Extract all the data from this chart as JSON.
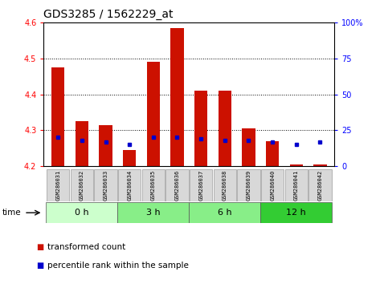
{
  "title": "GDS3285 / 1562229_at",
  "samples": [
    "GSM286031",
    "GSM286032",
    "GSM286033",
    "GSM286034",
    "GSM286035",
    "GSM286036",
    "GSM286037",
    "GSM286038",
    "GSM286039",
    "GSM286040",
    "GSM286041",
    "GSM286042"
  ],
  "red_values": [
    4.475,
    4.325,
    4.315,
    4.245,
    4.49,
    4.585,
    4.41,
    4.41,
    4.305,
    4.27,
    4.205,
    4.205
  ],
  "blue_values": [
    20,
    18,
    17,
    15,
    20,
    20,
    19,
    18,
    18,
    17,
    15,
    17
  ],
  "ylim": [
    4.2,
    4.6
  ],
  "ylim_right": [
    0,
    100
  ],
  "yticks_left": [
    4.2,
    4.3,
    4.4,
    4.5,
    4.6
  ],
  "yticks_right": [
    0,
    25,
    50,
    75,
    100
  ],
  "bar_color": "#cc1100",
  "dot_color": "#0000cc",
  "bar_width": 0.55,
  "base_value": 4.2,
  "group_colors": [
    "#ccffcc",
    "#88ee88",
    "#88ee88",
    "#33cc33"
  ],
  "group_labels": [
    "0 h",
    "3 h",
    "6 h",
    "12 h"
  ],
  "group_ranges": [
    [
      0,
      3
    ],
    [
      3,
      6
    ],
    [
      6,
      9
    ],
    [
      9,
      12
    ]
  ],
  "title_fontsize": 10,
  "tick_fontsize": 7,
  "label_fontsize": 7.5
}
